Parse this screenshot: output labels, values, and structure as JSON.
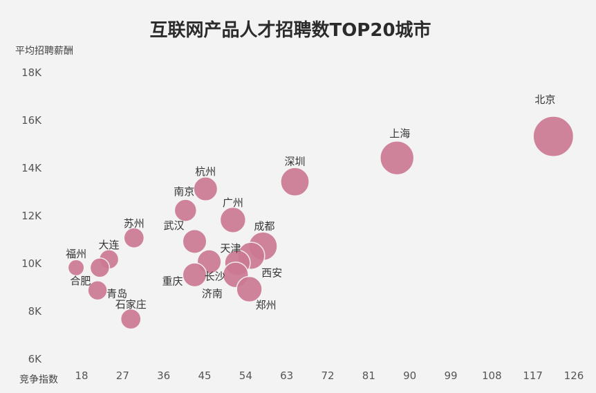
{
  "chart_data": {
    "type": "scatter",
    "title": "互联网产品人才招聘数TOP20城市",
    "xlabel": "竞争指数",
    "ylabel": "平均招聘薪酬",
    "xlim": [
      10,
      130
    ],
    "ylim": [
      6000,
      18000
    ],
    "x_ticks": [
      "18",
      "27",
      "36",
      "45",
      "54",
      "63",
      "72",
      "81",
      "90",
      "99",
      "108",
      "117",
      "126"
    ],
    "x_tick_values": [
      18,
      27,
      36,
      45,
      54,
      63,
      72,
      81,
      90,
      99,
      108,
      117,
      126
    ],
    "y_ticks": [
      "6K",
      "8K",
      "10K",
      "12K",
      "14K",
      "16K",
      "18K"
    ],
    "y_tick_values": [
      6000,
      8000,
      10000,
      12000,
      14000,
      16000,
      18000
    ],
    "grid": false,
    "bubble_color": "#cc7a94",
    "points": [
      {
        "name": "北京",
        "x": 121.5,
        "y": 15300,
        "size": 10
      },
      {
        "name": "上海",
        "x": 87.2,
        "y": 14400,
        "size": 7
      },
      {
        "name": "深圳",
        "x": 64.8,
        "y": 13400,
        "size": 5
      },
      {
        "name": "杭州",
        "x": 45.2,
        "y": 13100,
        "size": 3.5
      },
      {
        "name": "南京",
        "x": 40.8,
        "y": 12200,
        "size": 3
      },
      {
        "name": "广州",
        "x": 51.2,
        "y": 11800,
        "size": 4
      },
      {
        "name": "武汉",
        "x": 42.8,
        "y": 10900,
        "size": 3.5
      },
      {
        "name": "成都",
        "x": 57.8,
        "y": 10700,
        "size": 5
      },
      {
        "name": "天津",
        "x": 52.2,
        "y": 10000,
        "size": 4
      },
      {
        "name": "西安",
        "x": 55.2,
        "y": 10300,
        "size": 4.5
      },
      {
        "name": "长沙",
        "x": 46.0,
        "y": 10050,
        "size": 3.5
      },
      {
        "name": "济南",
        "x": 51.8,
        "y": 9500,
        "size": 4
      },
      {
        "name": "郑州",
        "x": 54.8,
        "y": 8900,
        "size": 4
      },
      {
        "name": "重庆",
        "x": 42.8,
        "y": 9500,
        "size": 3.5
      },
      {
        "name": "苏州",
        "x": 29.5,
        "y": 11050,
        "size": 2.5
      },
      {
        "name": "大连",
        "x": 24.0,
        "y": 10150,
        "size": 2.3
      },
      {
        "name": "福州",
        "x": 16.8,
        "y": 9800,
        "size": 1.6
      },
      {
        "name": "合肥",
        "x": 22.0,
        "y": 9800,
        "size": 2.3
      },
      {
        "name": "青岛",
        "x": 21.5,
        "y": 8850,
        "size": 2.3
      },
      {
        "name": "石家庄",
        "x": 28.8,
        "y": 7650,
        "size": 2.5
      }
    ]
  }
}
